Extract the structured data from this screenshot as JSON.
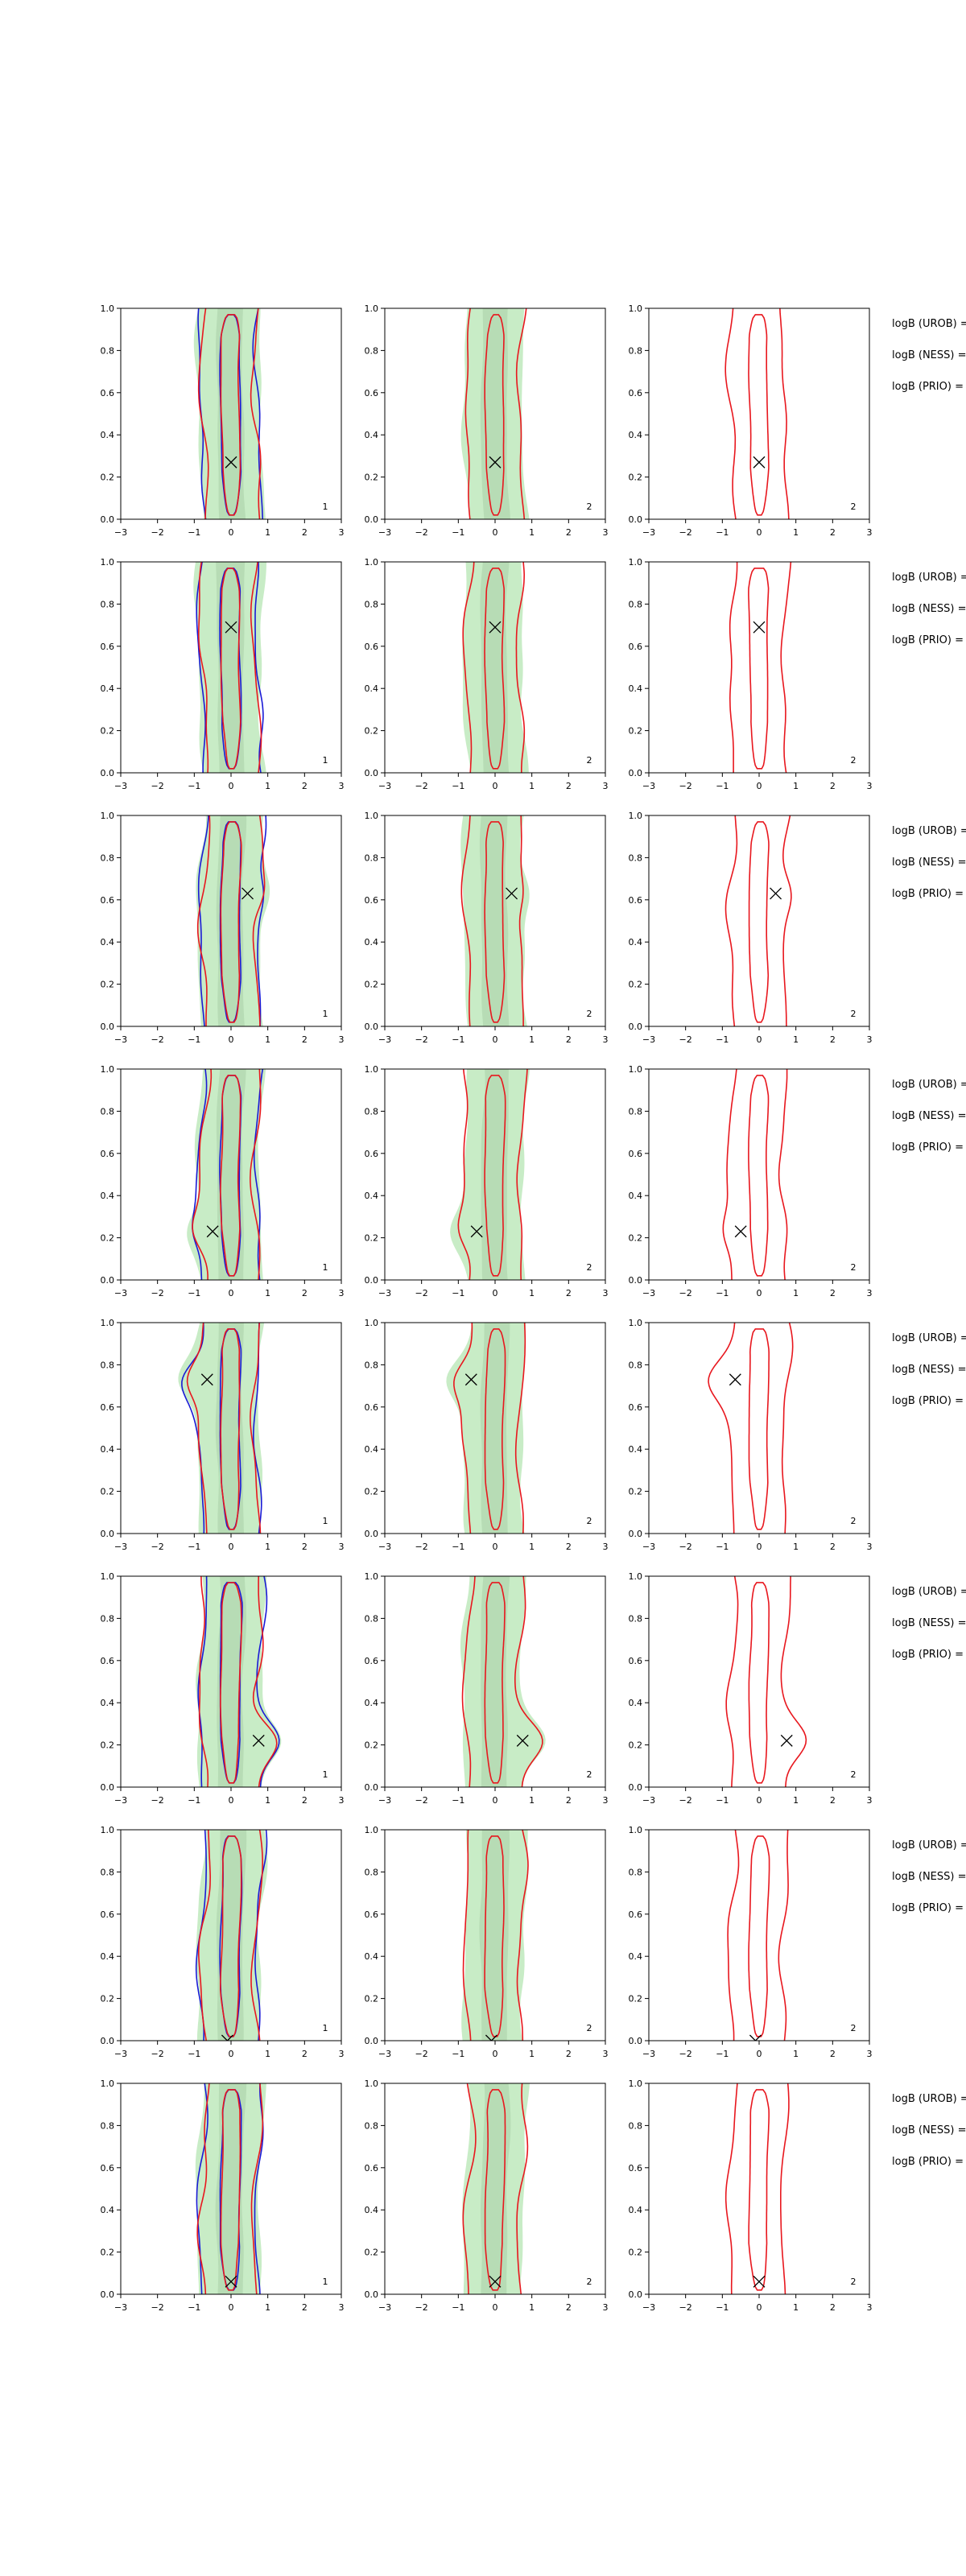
{
  "figure": {
    "rows": 8,
    "cols": 3,
    "colors": {
      "fill_light": "#c8ecc6",
      "fill_dark": "#a9cfa8",
      "contour_red": "#e8171e",
      "contour_blue": "#1a1ad6",
      "marker": "#000000",
      "axes": "#000000"
    },
    "annotation_labels": [
      "logB (UROB) =",
      "logB (NESS) =",
      "logB (PRIO) ="
    ]
  },
  "chart_data": {
    "type": "contour",
    "xlim": [
      -3,
      3
    ],
    "ylim": [
      0,
      1
    ],
    "xticks": [
      "−3",
      "−2",
      "−1",
      "0",
      "1",
      "2",
      "3"
    ],
    "yticks": [
      "0.0",
      "0.2",
      "0.4",
      "0.6",
      "0.8",
      "1.0"
    ],
    "panel_labels": [
      "1",
      "2",
      "2"
    ],
    "panels": [
      {
        "row": 1,
        "marker": [
          0.0,
          0.27
        ]
      },
      {
        "row": 2,
        "marker": [
          0.0,
          0.69
        ]
      },
      {
        "row": 3,
        "marker": [
          0.45,
          0.63
        ]
      },
      {
        "row": 4,
        "marker": [
          -0.5,
          0.23
        ]
      },
      {
        "row": 5,
        "marker": [
          -0.65,
          0.73
        ]
      },
      {
        "row": 6,
        "marker": [
          0.75,
          0.22
        ]
      },
      {
        "row": 7,
        "marker": [
          -0.1,
          0.0
        ]
      },
      {
        "row": 8,
        "marker": [
          0.0,
          0.06
        ]
      }
    ]
  }
}
